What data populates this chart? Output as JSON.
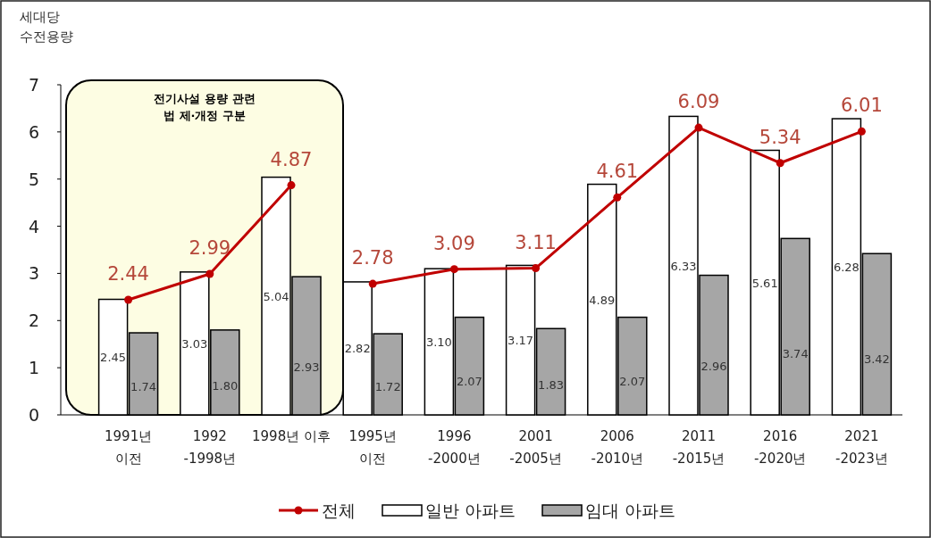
{
  "chart_data": {
    "type": "bar",
    "ylabel": "세대당\n수전용량",
    "categories": [
      "1991년\n이전",
      "1992\n-1998년",
      "1998년 이후",
      "1995년\n이전",
      "1996\n-2000년",
      "2001\n-2005년",
      "2006\n-2010년",
      "2011\n-2015년",
      "2016\n-2020년",
      "2021\n-2023년"
    ],
    "series": [
      {
        "name": "전체",
        "type": "line",
        "color": "#c00000",
        "marker": "circle",
        "values": [
          2.44,
          2.99,
          4.87,
          null,
          null,
          null,
          null,
          null,
          null,
          null
        ]
      },
      {
        "type": "line",
        "color": "#c00000",
        "marker": "circle",
        "values": [
          null,
          null,
          null,
          2.78,
          3.09,
          3.11,
          4.61,
          6.09,
          5.34,
          6.01
        ]
      },
      {
        "name": "일반 아파트",
        "type": "bar",
        "color": "#ffffff",
        "values": [
          2.45,
          3.03,
          5.04,
          2.82,
          3.1,
          3.17,
          4.89,
          6.33,
          5.61,
          6.28
        ],
        "value_labels": [
          "2.45",
          "3.03",
          "5.04",
          "2.82",
          "3.10",
          "3.17",
          "4.89",
          "6.33",
          "5.61",
          "6.28"
        ]
      },
      {
        "name": "임대 아파트",
        "type": "bar",
        "color": "#a6a6a6",
        "values": [
          1.74,
          1.8,
          2.93,
          1.72,
          2.07,
          1.83,
          2.07,
          2.96,
          3.74,
          3.42
        ],
        "value_labels": [
          "1.74",
          "1.80",
          "2.93",
          "1.72",
          "2.07",
          "1.83",
          "2.07",
          "2.96",
          "3.74",
          "3.42"
        ]
      }
    ],
    "ylim": [
      0,
      7
    ],
    "yticks": [
      0,
      1,
      2,
      3,
      4,
      5,
      6,
      7
    ],
    "data_labels": true,
    "legend": "bottom",
    "grid": false,
    "annotations": [
      "전기사설 용량 관련\n법 제·개정 구분"
    ]
  }
}
